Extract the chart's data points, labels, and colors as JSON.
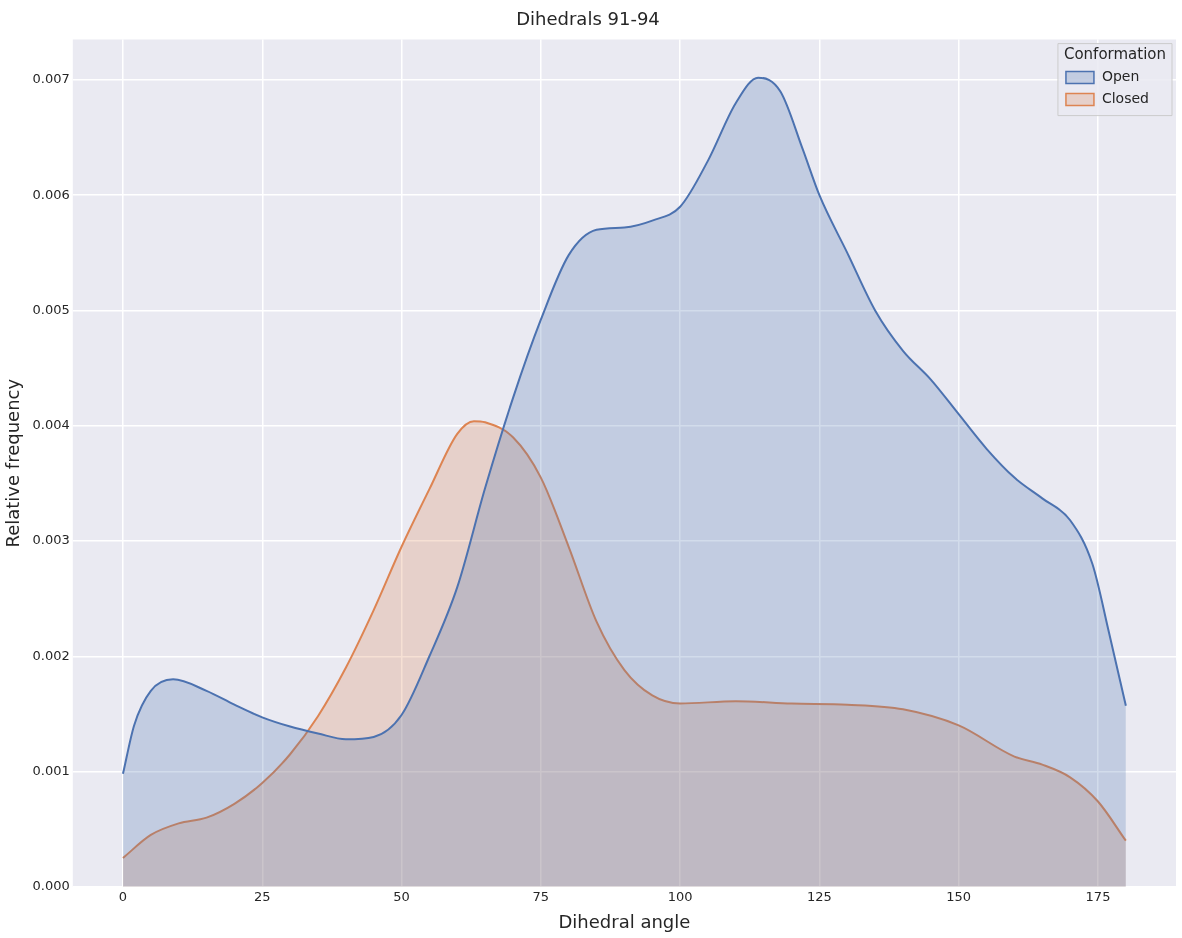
{
  "chart_data": {
    "type": "area",
    "title": "Dihedrals 91-94",
    "xlabel": "Dihedral angle",
    "ylabel": "Relative frequency",
    "legend_title": "Conformation",
    "xlim": [
      -9,
      189
    ],
    "xticks": [
      0,
      25,
      50,
      75,
      100,
      125,
      150,
      175
    ],
    "ylim": [
      0,
      0.00735
    ],
    "yticks": [
      {
        "value": 0,
        "label": "0.000"
      },
      {
        "value": 0.001,
        "label": "0.001"
      },
      {
        "value": 0.002,
        "label": "0.002"
      },
      {
        "value": 0.003,
        "label": "0.003"
      },
      {
        "value": 0.004,
        "label": "0.004"
      },
      {
        "value": 0.005,
        "label": "0.005"
      },
      {
        "value": 0.006,
        "label": "0.006"
      },
      {
        "value": 0.007,
        "label": "0.007"
      }
    ],
    "grid": true,
    "legend": "top right",
    "series": [
      {
        "name": "Open",
        "color": "#4c72b0",
        "x": [
          0,
          2,
          5,
          9,
          15,
          20,
          25,
          30,
          35,
          40,
          45,
          50,
          55,
          60,
          65,
          70,
          75,
          80,
          85,
          90,
          95,
          100,
          105,
          110,
          114,
          118,
          122,
          125,
          130,
          135,
          140,
          145,
          150,
          155,
          160,
          165,
          170,
          174,
          177,
          180
        ],
        "values": [
          0.00098,
          0.0014,
          0.0017,
          0.0018,
          0.0017,
          0.00158,
          0.00147,
          0.00139,
          0.00133,
          0.00128,
          0.0013,
          0.00149,
          0.002,
          0.0026,
          0.00346,
          0.00424,
          0.00492,
          0.00548,
          0.0057,
          0.00572,
          0.00578,
          0.0059,
          0.0063,
          0.0068,
          0.00702,
          0.0069,
          0.0064,
          0.006,
          0.0055,
          0.005,
          0.00465,
          0.0044,
          0.0041,
          0.0038,
          0.00355,
          0.00337,
          0.00318,
          0.0028,
          0.0022,
          0.00157
        ]
      },
      {
        "name": "Closed",
        "color": "#dd8452",
        "x": [
          0,
          5,
          10,
          15,
          20,
          25,
          30,
          35,
          40,
          45,
          50,
          55,
          60,
          63,
          65,
          70,
          75,
          80,
          85,
          90,
          95,
          100,
          110,
          120,
          130,
          140,
          150,
          160,
          165,
          170,
          175,
          180
        ],
        "values": [
          0.00025,
          0.00045,
          0.00055,
          0.0006,
          0.00072,
          0.0009,
          0.00115,
          0.00148,
          0.0019,
          0.0024,
          0.00295,
          0.00345,
          0.00393,
          0.00404,
          0.00403,
          0.0039,
          0.00355,
          0.00295,
          0.0023,
          0.00188,
          0.00166,
          0.00159,
          0.00161,
          0.00159,
          0.00158,
          0.00154,
          0.0014,
          0.00113,
          0.00106,
          0.00095,
          0.00074,
          0.0004
        ]
      }
    ]
  }
}
